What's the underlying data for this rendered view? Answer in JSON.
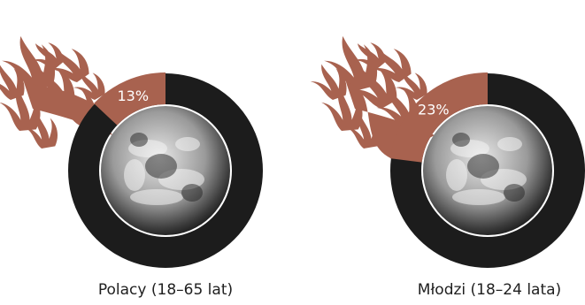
{
  "chart_data": {
    "type": "pie",
    "charts": [
      {
        "label": "Polacy (18–65 lat)",
        "value": 13,
        "value_label": "13%"
      },
      {
        "label": "Młodzi (18–24 lata)",
        "value": 23,
        "value_label": "23%"
      }
    ]
  },
  "colors": {
    "ring": "#1c1c1c",
    "highlight": "#a8624f",
    "flame": "#a8624f",
    "background": "#ffffff"
  },
  "icons": [
    "earth-globe-image",
    "flame-icon"
  ]
}
